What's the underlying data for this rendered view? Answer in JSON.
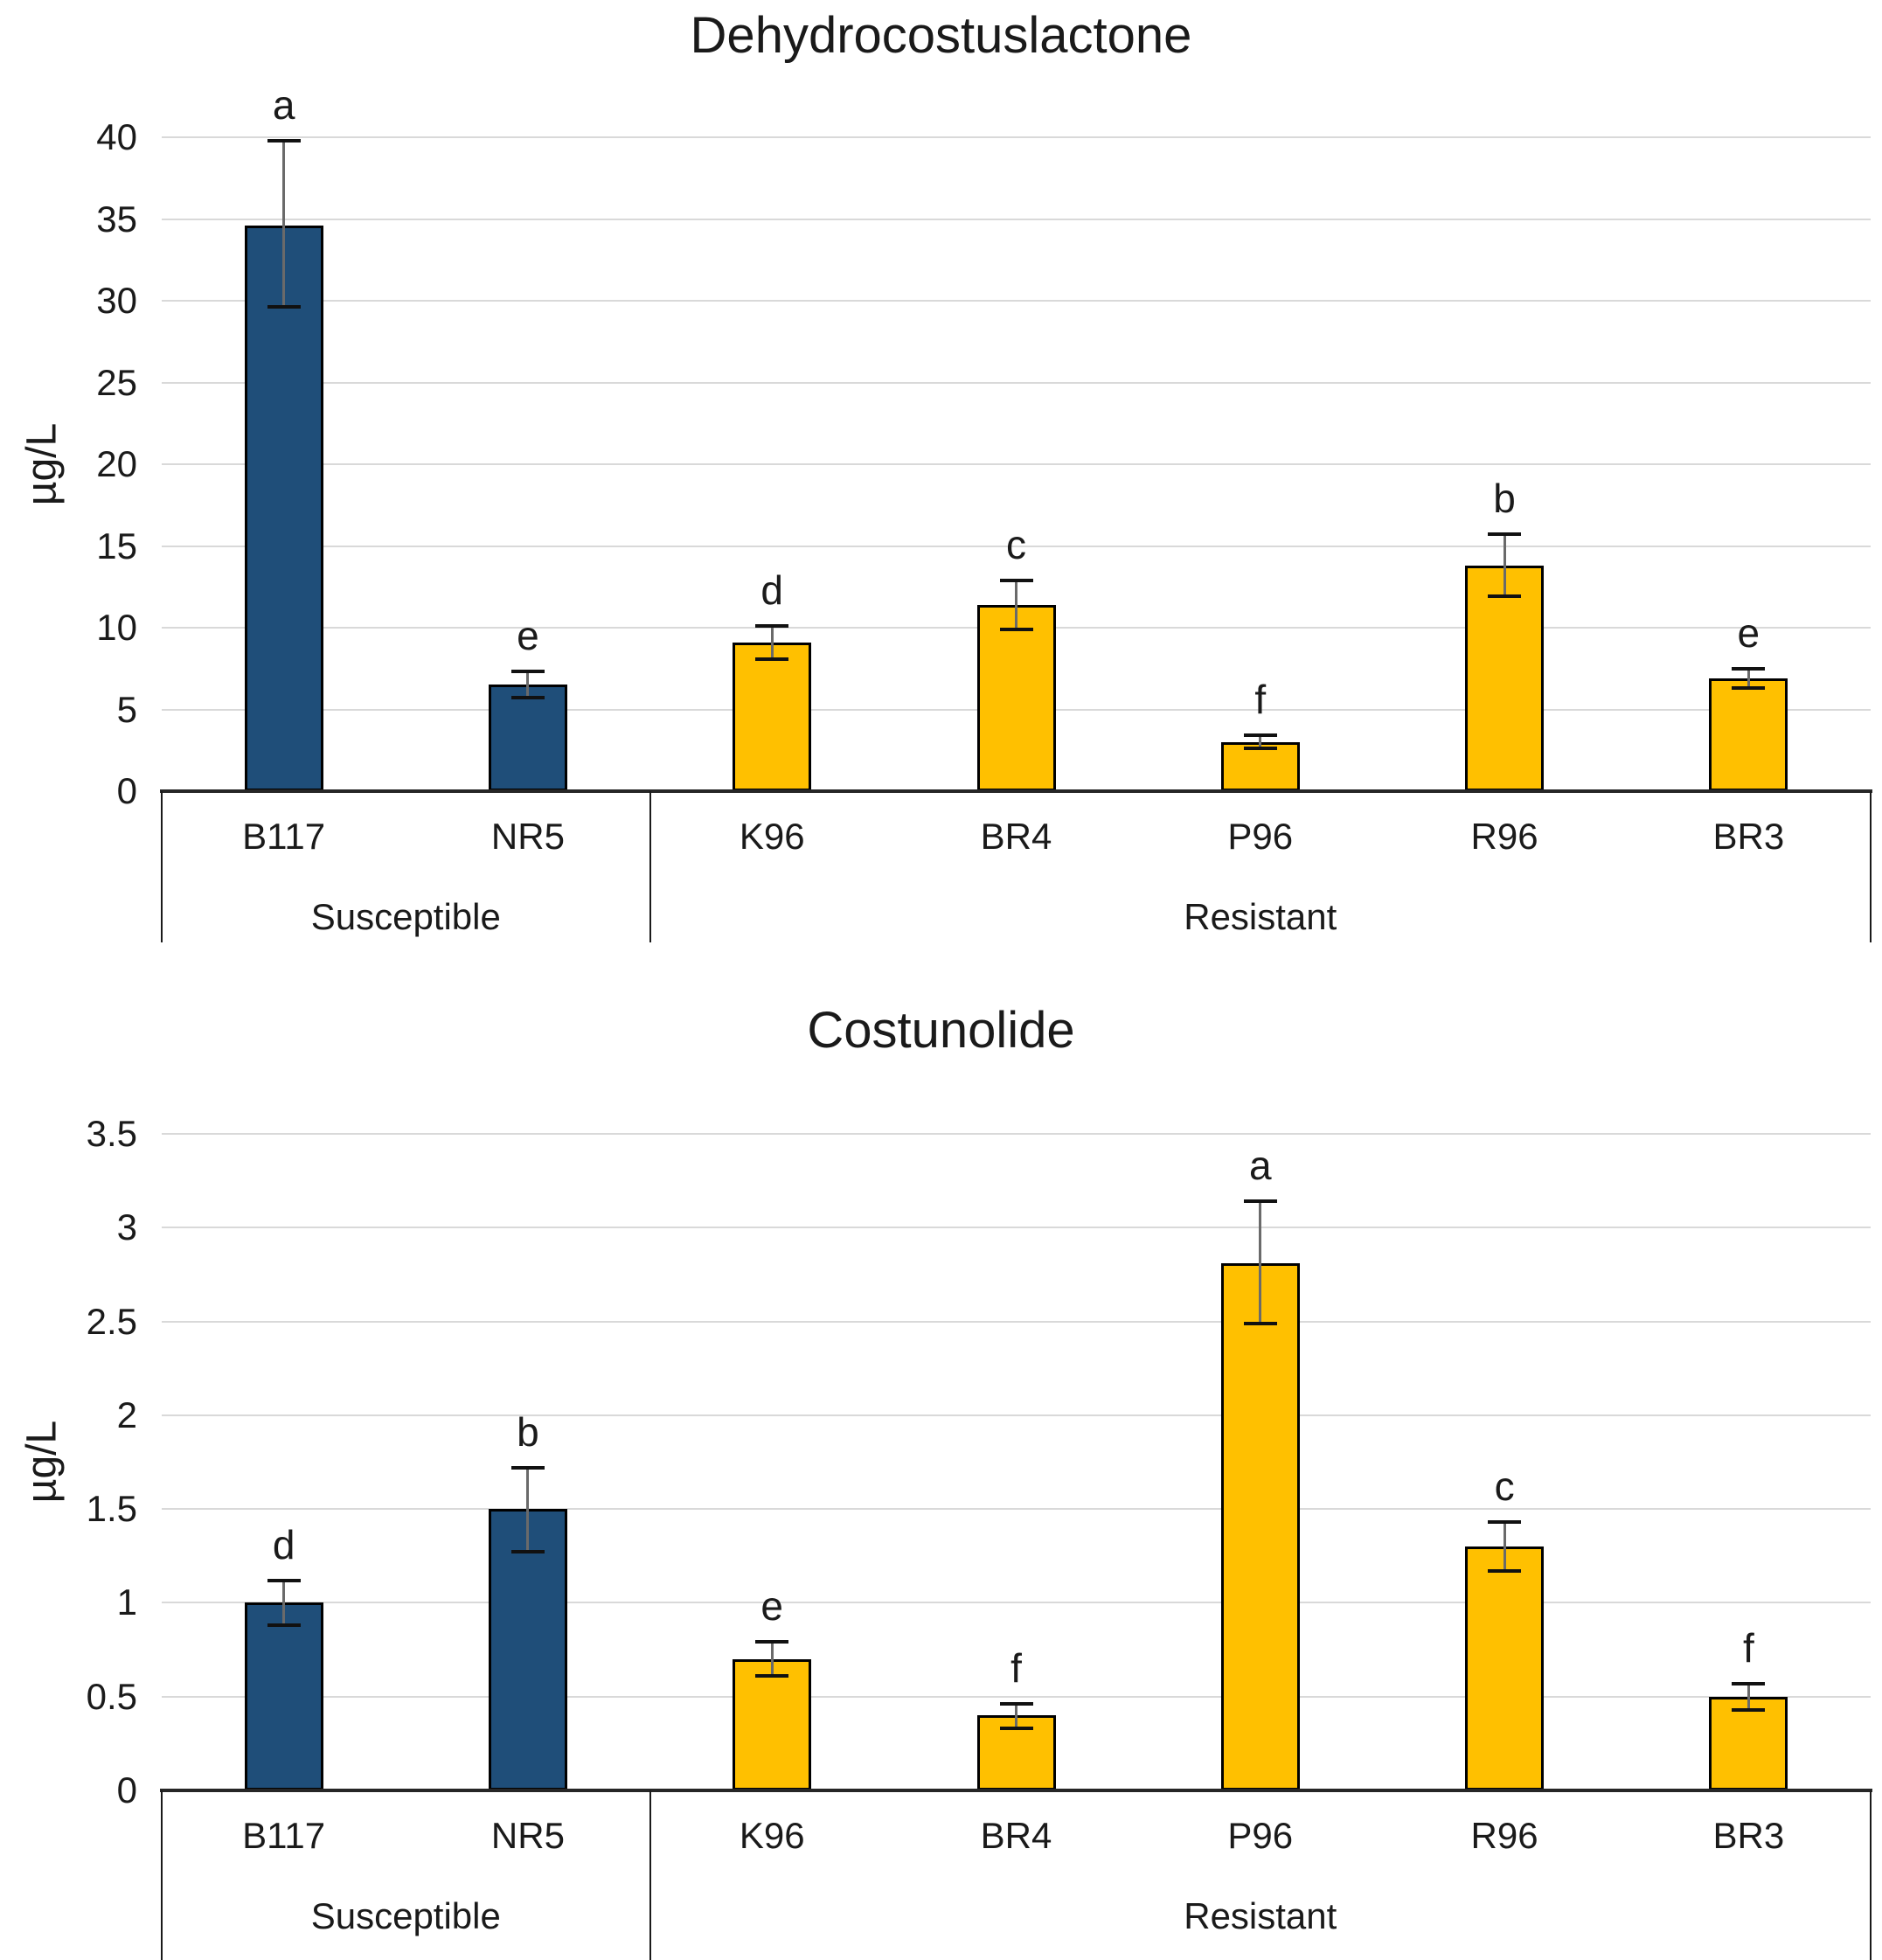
{
  "figure": {
    "background": "#FFFFFF",
    "description": "Two stacked grouped bar charts with error bars and significance letters"
  },
  "colors": {
    "susceptible_bar": "#1F4E79",
    "resistant_bar": "#FFC000",
    "gridline": "#D9D9D9",
    "axis_line": "#262626",
    "error_bar_line": "#6A6A6A",
    "error_bar_cap": "#111111",
    "text": "#000000"
  },
  "chart_data": [
    {
      "type": "bar",
      "title": "Dehydrocostuslactone",
      "ylabel": "µg/L",
      "xlabel": "",
      "ylim": [
        0,
        40
      ],
      "ytick_step": 5,
      "ytick_labels": [
        "0",
        "5",
        "10",
        "15",
        "20",
        "25",
        "30",
        "35",
        "40"
      ],
      "grid": true,
      "legend": "none",
      "categories": [
        "B117",
        "NR5",
        "K96",
        "BR4",
        "P96",
        "R96",
        "BR3"
      ],
      "groups": [
        {
          "label": "Susceptible",
          "count": 2,
          "color": "#1F4E79"
        },
        {
          "label": "Resistant",
          "count": 5,
          "color": "#FFC000"
        }
      ],
      "bars": [
        {
          "category": "B117",
          "group": "Susceptible",
          "value": 34.6,
          "err_up": 5.2,
          "err_down": 5.0,
          "letter": "a"
        },
        {
          "category": "NR5",
          "group": "Susceptible",
          "value": 6.5,
          "err_up": 0.8,
          "err_down": 0.8,
          "letter": "e"
        },
        {
          "category": "K96",
          "group": "Resistant",
          "value": 9.1,
          "err_up": 1.0,
          "err_down": 1.0,
          "letter": "d"
        },
        {
          "category": "BR4",
          "group": "Resistant",
          "value": 11.4,
          "err_up": 1.5,
          "err_down": 1.5,
          "letter": "c"
        },
        {
          "category": "P96",
          "group": "Resistant",
          "value": 3.0,
          "err_up": 0.4,
          "err_down": 0.4,
          "letter": "f"
        },
        {
          "category": "R96",
          "group": "Resistant",
          "value": 13.8,
          "err_up": 1.9,
          "err_down": 1.9,
          "letter": "b"
        },
        {
          "category": "BR3",
          "group": "Resistant",
          "value": 6.9,
          "err_up": 0.6,
          "err_down": 0.6,
          "letter": "e"
        }
      ]
    },
    {
      "type": "bar",
      "title": "Costunolide",
      "ylabel": "µg/L",
      "xlabel": "",
      "ylim": [
        0,
        3.5
      ],
      "ytick_step": 0.5,
      "ytick_labels": [
        "0",
        "0.5",
        "1",
        "1.5",
        "2",
        "2.5",
        "3",
        "3.5"
      ],
      "grid": true,
      "legend": "none",
      "categories": [
        "B117",
        "NR5",
        "K96",
        "BR4",
        "P96",
        "R96",
        "BR3"
      ],
      "groups": [
        {
          "label": "Susceptible",
          "count": 2,
          "color": "#1F4E79"
        },
        {
          "label": "Resistant",
          "count": 5,
          "color": "#FFC000"
        }
      ],
      "bars": [
        {
          "category": "B117",
          "group": "Susceptible",
          "value": 1.0,
          "err_up": 0.12,
          "err_down": 0.12,
          "letter": "d"
        },
        {
          "category": "NR5",
          "group": "Susceptible",
          "value": 1.5,
          "err_up": 0.22,
          "err_down": 0.23,
          "letter": "b"
        },
        {
          "category": "K96",
          "group": "Resistant",
          "value": 0.7,
          "err_up": 0.09,
          "err_down": 0.09,
          "letter": "e"
        },
        {
          "category": "BR4",
          "group": "Resistant",
          "value": 0.4,
          "err_up": 0.06,
          "err_down": 0.07,
          "letter": "f"
        },
        {
          "category": "P96",
          "group": "Resistant",
          "value": 2.81,
          "err_up": 0.33,
          "err_down": 0.32,
          "letter": "a"
        },
        {
          "category": "R96",
          "group": "Resistant",
          "value": 1.3,
          "err_up": 0.13,
          "err_down": 0.13,
          "letter": "c"
        },
        {
          "category": "BR3",
          "group": "Resistant",
          "value": 0.5,
          "err_up": 0.07,
          "err_down": 0.07,
          "letter": "f"
        }
      ]
    }
  ]
}
